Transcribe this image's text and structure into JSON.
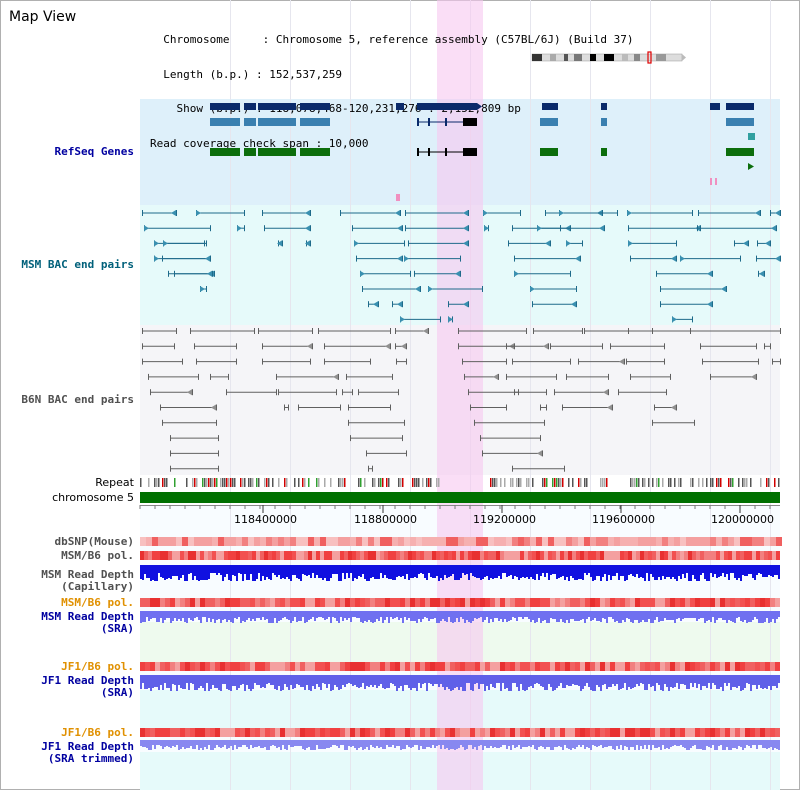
{
  "header": {
    "title": "Map View",
    "info_lines": [
      "  Chromosome     : Chromosome 5, reference assembly (C57BL/6J) (Build 37)",
      "  Length (b.p.) : 152,537,259",
      "    Show (b.p.) : 118,078,468-120,231,276 : 2,152,809 bp",
      "Read coverage check span : 10,000"
    ]
  },
  "tracks": {
    "refseq": "RefSeq Genes",
    "msm_bac": "MSM BAC end pairs",
    "b6n_bac": "B6N BAC end pairs",
    "repeat": "Repeat",
    "chromosome": "chromosome 5",
    "dbsnp": "dbSNP(Mouse)",
    "msm_b6_pol": "MSM/B6 pol.",
    "msm_depth_cap_1": "MSM Read Depth",
    "msm_depth_cap_2": "(Capillary)",
    "msm_b6_pol_2": "MSM/B6 pol.",
    "msm_depth_sra_1": "MSM Read Depth",
    "msm_depth_sra_2": "(SRA)",
    "jf1_b6_pol": "JF1/B6 pol.",
    "jf1_depth_sra_1": "JF1 Read Depth",
    "jf1_depth_sra_2": "(SRA)",
    "jf1_b6_pol_2": "JF1/B6 pol.",
    "jf1_depth_trim_1": "JF1 Read Depth",
    "jf1_depth_trim_2": "(SRA trimmed)"
  },
  "ruler": {
    "ticks": [
      "118400000",
      "118800000",
      "119200000",
      "119600000",
      "120000000"
    ]
  },
  "colors": {
    "highlight": "#f7c8f0",
    "refseq_bg": "#def0fa",
    "msm_bg": "#e6fafa",
    "label_blue": "#0000a0",
    "label_teal": "#00607a",
    "label_gray": "#505050",
    "label_orange": "#e09000",
    "chrom_green": "#007000"
  }
}
